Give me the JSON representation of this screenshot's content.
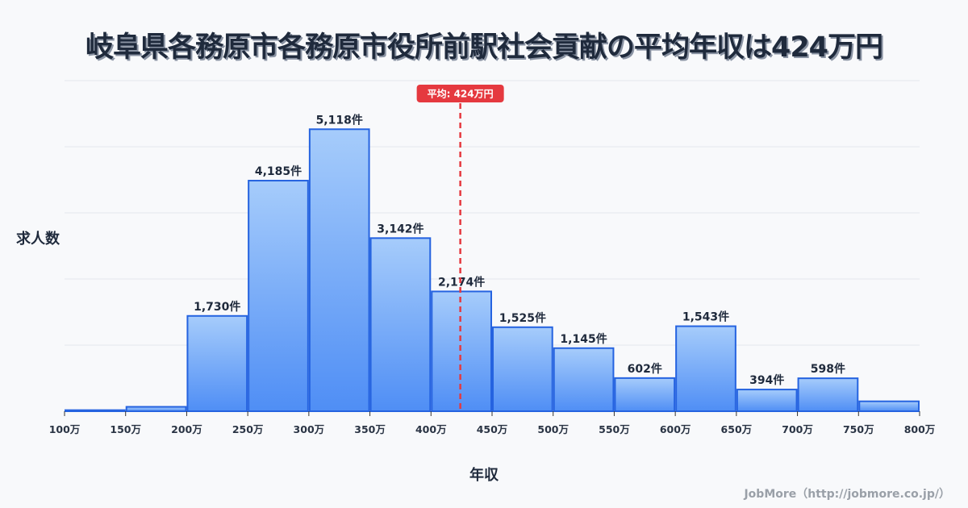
{
  "title": "岐阜県各務原市各務原市役所前駅社会貢献の平均年収は424万円",
  "y_axis_label": "求人数",
  "x_axis_label": "年収",
  "credit": "JobMore（http://jobmore.co.jp/）",
  "average_label": "平均: 424万円",
  "colors": {
    "bar_top": "#a6ccfb",
    "bar_bottom": "#4f8ef5",
    "bar_border": "#2563e0",
    "average_line": "#e5393f",
    "grid": "#e3e6ec",
    "background": "#f8f9fb"
  },
  "chart_data": {
    "type": "bar",
    "title": "岐阜県各務原市各務原市役所前駅社会貢献の平均年収は424万円",
    "xlabel": "年収",
    "ylabel": "求人数",
    "x_ticks": [
      "100万",
      "150万",
      "200万",
      "250万",
      "300万",
      "350万",
      "400万",
      "450万",
      "500万",
      "550万",
      "600万",
      "650万",
      "700万",
      "750万",
      "800万"
    ],
    "categories": [
      "100-150万",
      "150-200万",
      "200-250万",
      "250-300万",
      "300-350万",
      "350-400万",
      "400-450万",
      "450-500万",
      "500-550万",
      "550-600万",
      "600-650万",
      "650-700万",
      "700-750万",
      "750-800万"
    ],
    "values": [
      20,
      80,
      1730,
      4185,
      5118,
      3142,
      2174,
      1525,
      1145,
      602,
      1543,
      394,
      598,
      180
    ],
    "value_labels": [
      "",
      "",
      "1,730件",
      "4,185件",
      "5,118件",
      "3,142件",
      "2,174件",
      "1,525件",
      "1,145件",
      "602件",
      "1,543件",
      "394件",
      "598件",
      ""
    ],
    "average": 424,
    "average_label": "平均: 424万円",
    "ylim": [
      0,
      6000
    ],
    "grid": true,
    "legend": "none"
  }
}
